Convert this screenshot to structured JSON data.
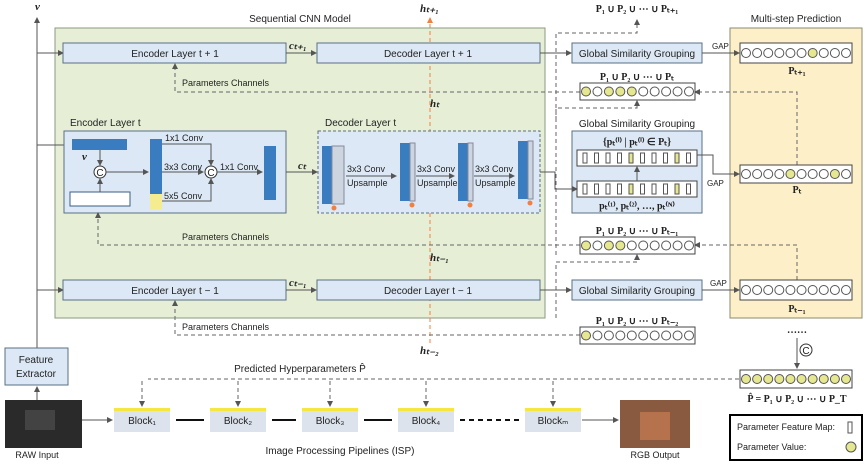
{
  "title": "Sequential CNN Model",
  "multistep_title": "Multi-step Prediction",
  "v_label": "v",
  "hidden": {
    "h_next": "hₜ₊₁",
    "h_t": "hₜ",
    "h_prev": "hₜ₋₁",
    "h_prev2": "hₜ₋₂"
  },
  "context": {
    "c_next": "cₜ₊₁",
    "c_t": "cₜ",
    "c_prev": "cₜ₋₁"
  },
  "encoders": {
    "next": "Encoder Layer t + 1",
    "t": "Encoder Layer t",
    "prev": "Encoder Layer t − 1"
  },
  "decoders": {
    "next": "Decoder Layer t + 1",
    "t": "Decoder Layer t",
    "prev": "Decoder Layer t − 1"
  },
  "params_channels": "Parameters Channels",
  "encoder_detail": {
    "v": "v",
    "conv1": "1x1 Conv",
    "conv3": "3x3 Conv",
    "conv5": "5x5 Conv",
    "conv1b": "1x1 Conv",
    "concat": "C"
  },
  "decoder_detail": {
    "conv": "3x3 Conv",
    "up": "Upsample"
  },
  "gsg": "Global Similarity Grouping",
  "gap": "GAP",
  "gsg_detail": {
    "top": "{pₜ⁽ⁱ⁾ | pₜ⁽ⁱ⁾ ∈ Pₜ}",
    "bottom": "pₜ⁽¹⁾, pₜ⁽²⁾, …, pₜ⁽ᴺ⁾"
  },
  "unions": {
    "next": "P₁ ∪ P₂ ∪ ⋯ ∪ Pₜ₊₁",
    "t": "P₁ ∪ P₂ ∪ ⋯ ∪ Pₜ",
    "prev": "P₁ ∪ P₂ ∪ ⋯ ∪ Pₜ₋₁",
    "prev2": "P₁ ∪ P₂ ∪ ⋯ ∪ Pₜ₋₂"
  },
  "preds": {
    "next": "Pₜ₊₁",
    "t": "Pₜ",
    "prev": "Pₜ₋₁"
  },
  "ellipsis": "……",
  "concat_symbol": "C",
  "final": "P̂ = P₁ ∪ P₂ ∪ ⋯ ∪ P_T",
  "feature_extractor": [
    "Feature",
    "Extractor"
  ],
  "predicted_hyper": "Predicted Hyperparameters P̂",
  "blocks": [
    "Block₁",
    "Block₂",
    "Block₃",
    "Block₄",
    "Blockₘ"
  ],
  "isp_label": "Image Processing Pipelines (ISP)",
  "raw_input": "RAW Input",
  "rgb_output": "RGB Output",
  "legend": {
    "feature_map": "Parameter Feature Map:",
    "value": "Parameter Value:"
  },
  "colors": {
    "green_panel": "#e6efd6",
    "yellow_panel": "#fdf0c8",
    "box": "#dce8f5",
    "block_bar": "#2f6fb0",
    "highlight": "#e6e890",
    "hidden_state": "#f08040",
    "isp_strip": "#f5e642"
  },
  "circle_rows": {
    "pred_next": [
      0,
      0,
      0,
      0,
      0,
      0,
      1,
      0,
      0,
      0
    ],
    "union_t": [
      1,
      0,
      1,
      1,
      1,
      0,
      0,
      0,
      0,
      0
    ],
    "pred_t": [
      0,
      0,
      0,
      0,
      1,
      0,
      0,
      0,
      1,
      0
    ],
    "union_prev": [
      1,
      0,
      1,
      1,
      0,
      0,
      0,
      0,
      0,
      0
    ],
    "pred_prev": [
      0,
      0,
      0,
      0,
      0,
      0,
      0,
      0,
      0,
      0
    ],
    "union_prev2": [
      1,
      0,
      0,
      0,
      0,
      0,
      0,
      0,
      0,
      0
    ],
    "final": [
      1,
      1,
      1,
      1,
      1,
      1,
      1,
      1,
      1,
      1
    ]
  }
}
